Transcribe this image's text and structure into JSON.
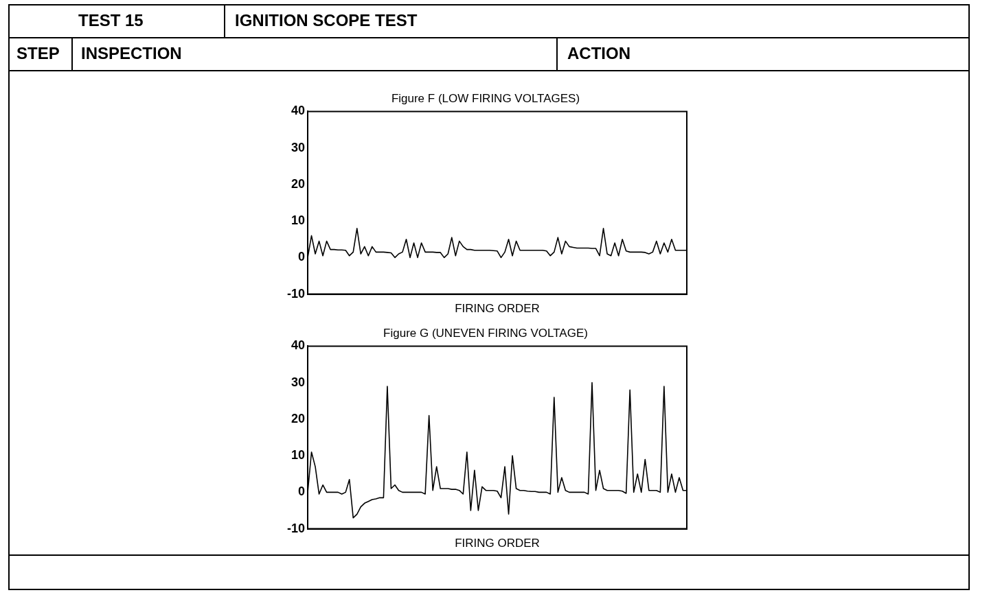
{
  "chart_data": [
    {
      "type": "line",
      "title": "Figure F (LOW FIRING VOLTAGES)",
      "xlabel": "FIRING ORDER",
      "annotations": [
        "TEST 15",
        "IGNITION SCOPE TEST",
        "STEP",
        "INSPECTION",
        "ACTION"
      ],
      "categories": [
        null,
        null,
        null,
        null,
        null,
        null,
        null,
        null,
        null,
        null,
        null,
        null,
        null,
        null,
        null,
        null,
        null,
        null,
        null,
        null,
        null,
        null,
        null,
        null,
        null,
        null,
        null,
        null,
        null,
        null,
        null,
        null,
        null,
        null,
        null,
        null,
        null,
        null,
        null,
        null,
        null,
        null,
        null,
        null,
        null,
        null,
        null,
        null,
        null,
        null,
        null,
        null,
        null,
        null,
        null,
        null,
        null,
        null,
        null,
        null,
        null,
        null,
        null,
        null,
        null,
        null,
        null,
        null,
        null,
        null,
        null,
        null,
        null,
        null,
        null,
        null,
        null,
        null,
        null,
        null,
        null,
        null,
        null,
        null,
        null,
        null,
        null,
        null,
        null,
        null,
        null,
        null,
        null,
        null,
        null,
        null,
        null,
        null,
        null,
        null,
        null
      ],
      "series": [
        {
          "color": "#000000",
          "values": [
            0,
            6,
            1,
            4.5,
            0.5,
            4.5,
            2.2,
            2.2,
            2.1,
            2.1,
            2,
            0.5,
            1.5,
            8,
            1,
            3,
            0.5,
            3,
            1.5,
            1.5,
            1.5,
            1.4,
            1.3,
            0,
            1,
            1.5,
            5,
            0,
            4,
            0,
            4,
            1.5,
            1.5,
            1.5,
            1.4,
            1.4,
            0,
            1,
            5.5,
            0.5,
            4.5,
            3,
            2.2,
            2.2,
            2,
            2,
            2,
            2,
            2,
            1.9,
            1.8,
            0,
            1.5,
            5,
            0.5,
            4.5,
            2,
            2,
            2,
            2,
            2,
            2,
            2,
            1.8,
            0.5,
            1.5,
            5.5,
            1,
            4.5,
            3,
            2.8,
            2.6,
            2.6,
            2.6,
            2.6,
            2.5,
            2.5,
            0.5,
            8,
            1,
            0.5,
            4,
            0.5,
            5,
            1.8,
            1.5,
            1.5,
            1.5,
            1.5,
            1.4,
            1,
            1.5,
            4.5,
            1,
            4,
            1.5,
            5,
            2,
            2,
            2,
            2
          ]
        }
      ],
      "ylim": [
        -10,
        40
      ],
      "yticks": [
        -10,
        0,
        10,
        20,
        30,
        40
      ],
      "tick_labels": "y",
      "grid": false,
      "legend": false,
      "marker": "none",
      "line_style": "solid"
    },
    {
      "type": "line",
      "title": "Figure G (UNEVEN FIRING VOLTAGE)",
      "xlabel": "FIRING ORDER",
      "categories": [
        null,
        null,
        null,
        null,
        null,
        null,
        null,
        null,
        null,
        null,
        null,
        null,
        null,
        null,
        null,
        null,
        null,
        null,
        null,
        null,
        null,
        null,
        null,
        null,
        null,
        null,
        null,
        null,
        null,
        null,
        null,
        null,
        null,
        null,
        null,
        null,
        null,
        null,
        null,
        null,
        null,
        null,
        null,
        null,
        null,
        null,
        null,
        null,
        null,
        null,
        null,
        null,
        null,
        null,
        null,
        null,
        null,
        null,
        null,
        null,
        null,
        null,
        null,
        null,
        null,
        null,
        null,
        null,
        null,
        null,
        null,
        null,
        null,
        null,
        null,
        null,
        null,
        null,
        null,
        null,
        null,
        null,
        null,
        null,
        null,
        null,
        null,
        null,
        null,
        null,
        null,
        null,
        null,
        null,
        null,
        null,
        null,
        null,
        null,
        null,
        null
      ],
      "series": [
        {
          "color": "#000000",
          "values": [
            0,
            11,
            7,
            -0.5,
            2,
            0,
            0,
            0,
            0,
            -0.5,
            0,
            3.5,
            -7,
            -6,
            -4,
            -3,
            -2.5,
            -2,
            -1.8,
            -1.5,
            -1.5,
            29,
            1,
            2,
            0.5,
            0,
            0,
            0,
            0,
            0,
            0,
            -0.5,
            21,
            0.5,
            7,
            1,
            1,
            1,
            0.8,
            0.8,
            0.5,
            -0.5,
            11,
            -5,
            6,
            -5,
            1.5,
            0.5,
            0.5,
            0.5,
            0.3,
            -1.5,
            7,
            -6,
            10,
            1,
            0.5,
            0.5,
            0.3,
            0.2,
            0.2,
            0,
            0,
            0,
            -0.5,
            26,
            0,
            4,
            0.5,
            0,
            0,
            0,
            0,
            0,
            -0.5,
            30,
            0.5,
            6,
            1,
            0.5,
            0.5,
            0.5,
            0.5,
            0.3,
            -0.3,
            28,
            0,
            5,
            0,
            9,
            0.5,
            0.5,
            0.5,
            0,
            29,
            0,
            5,
            0,
            4,
            0.5,
            0.5
          ]
        }
      ],
      "ylim": [
        -10,
        40
      ],
      "yticks": [
        -10,
        0,
        10,
        20,
        30,
        40
      ],
      "tick_labels": "y",
      "grid": false,
      "legend": false,
      "marker": "none",
      "line_style": "solid"
    }
  ]
}
